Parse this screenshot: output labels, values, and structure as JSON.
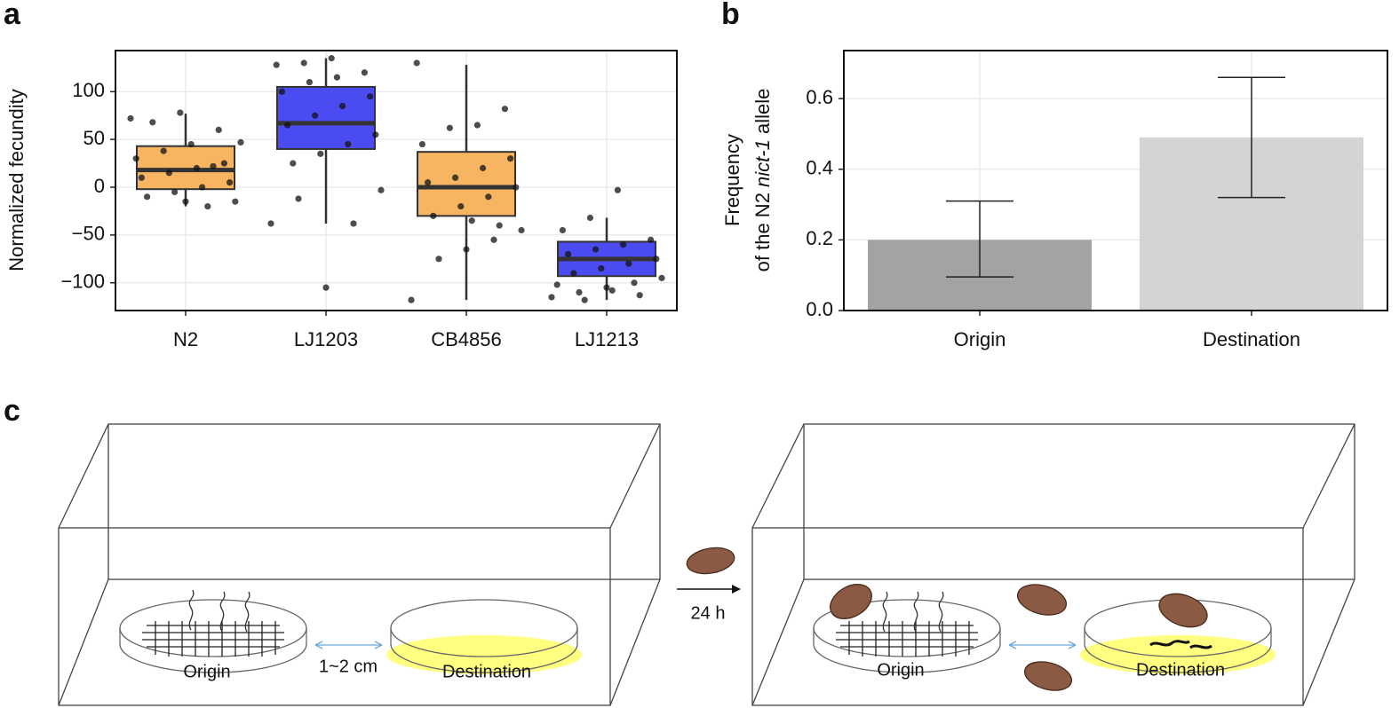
{
  "chart_data": [
    {
      "type": "box",
      "label": "a",
      "ylabel": "Normalized fecundity",
      "categories": [
        "N2",
        "LJ1203",
        "CB4856",
        "LJ1213"
      ],
      "colors": [
        "#f7b562",
        "#4b4bf2"
      ],
      "boxes": [
        {
          "low": -20,
          "q1": -2,
          "median": 18,
          "q3": 43,
          "high": 77,
          "points": [
            72,
            60,
            45,
            38,
            30,
            25,
            20,
            15,
            10,
            5,
            0,
            -5,
            -10,
            -15,
            -20,
            78,
            68,
            47,
            22,
            -15
          ]
        },
        {
          "low": -38,
          "q1": 40,
          "median": 67,
          "q3": 105,
          "high": 135,
          "points": [
            135,
            130,
            128,
            120,
            115,
            110,
            100,
            95,
            85,
            75,
            65,
            55,
            45,
            35,
            25,
            -3,
            -38,
            -105,
            -12,
            -38
          ]
        },
        {
          "low": -118,
          "q1": -30,
          "median": 0,
          "q3": 37,
          "high": 128,
          "points": [
            130,
            82,
            65,
            62,
            45,
            30,
            20,
            10,
            5,
            0,
            -10,
            -20,
            -30,
            -45,
            -55,
            -65,
            -75,
            -118,
            -40,
            -35
          ]
        },
        {
          "low": -118,
          "q1": -93,
          "median": -75,
          "q3": -57,
          "high": -32,
          "points": [
            -3,
            -32,
            -45,
            -55,
            -60,
            -65,
            -70,
            -75,
            -80,
            -85,
            -90,
            -95,
            -100,
            -105,
            -110,
            -115,
            -113,
            -108,
            -118,
            -102
          ]
        }
      ],
      "ylim": [
        -129,
        143
      ],
      "yticks": [
        {
          "value": -100,
          "label": "−100"
        },
        {
          "value": -50,
          "label": "−50"
        },
        0,
        50,
        100
      ],
      "grid": true
    },
    {
      "type": "bar",
      "label": "b",
      "ylabel": [
        "Frequency",
        "of the N2 ",
        "nict-1",
        " allele"
      ],
      "categories": [
        "Origin",
        "Destination"
      ],
      "values": [
        0.2,
        0.49
      ],
      "lower": [
        0.095,
        0.32
      ],
      "upper": [
        0.31,
        0.66
      ],
      "colors": [
        "#a3a3a3",
        "#d4d4d4"
      ],
      "ylim": [
        0,
        0.736
      ],
      "yticks": [
        {
          "value": 0,
          "label": "0.0"
        },
        {
          "value": 0.2,
          "label": "0.2"
        },
        {
          "value": 0.4,
          "label": "0.4"
        },
        {
          "value": 0.6,
          "label": "0.6"
        }
      ],
      "grid": true
    }
  ],
  "diagram": {
    "label": "c",
    "left": {
      "origin": "Origin",
      "destination": "Destination",
      "distance": "1~2 cm"
    },
    "time": "24 h",
    "right": {
      "origin": "Origin",
      "destination": "Destination"
    }
  }
}
